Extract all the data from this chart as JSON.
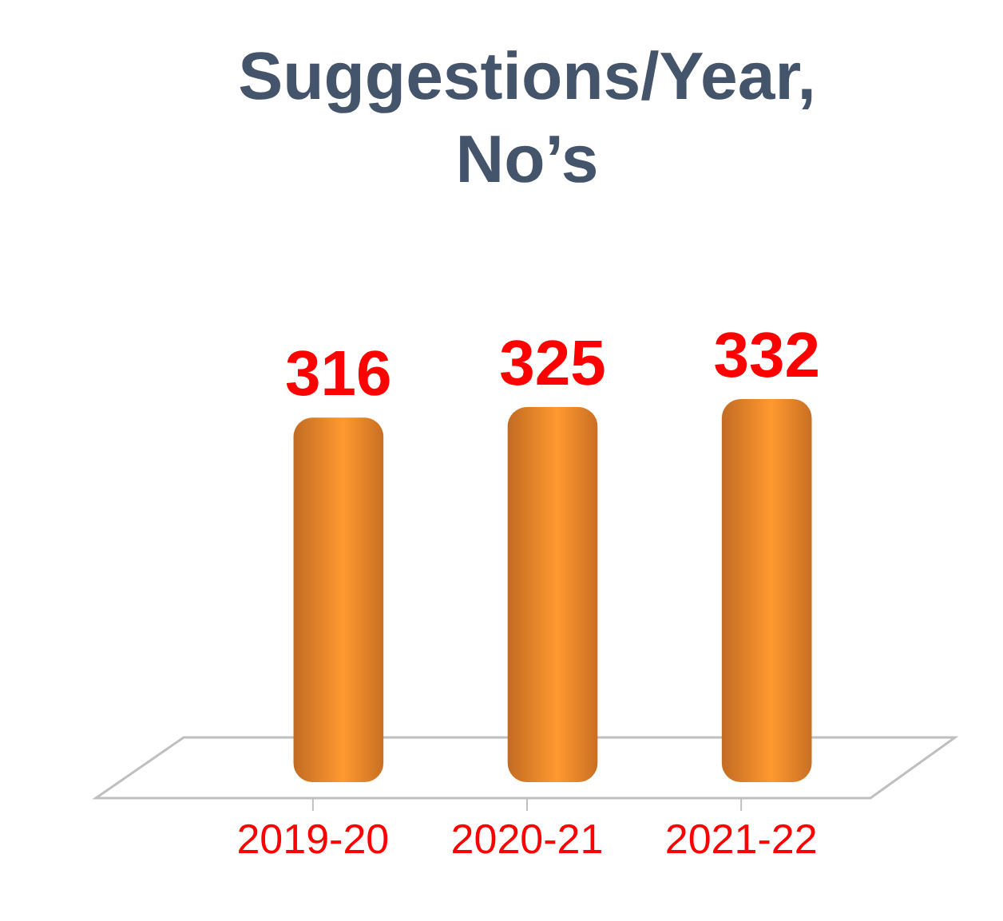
{
  "chart_data": {
    "type": "bar",
    "title": "Suggestions/Year, No’s",
    "categories": [
      "2019-20",
      "2020-21",
      "2021-22"
    ],
    "values": [
      316,
      325,
      332
    ],
    "color": "#f0852a",
    "tick_labels": "x",
    "data_labels": true
  }
}
